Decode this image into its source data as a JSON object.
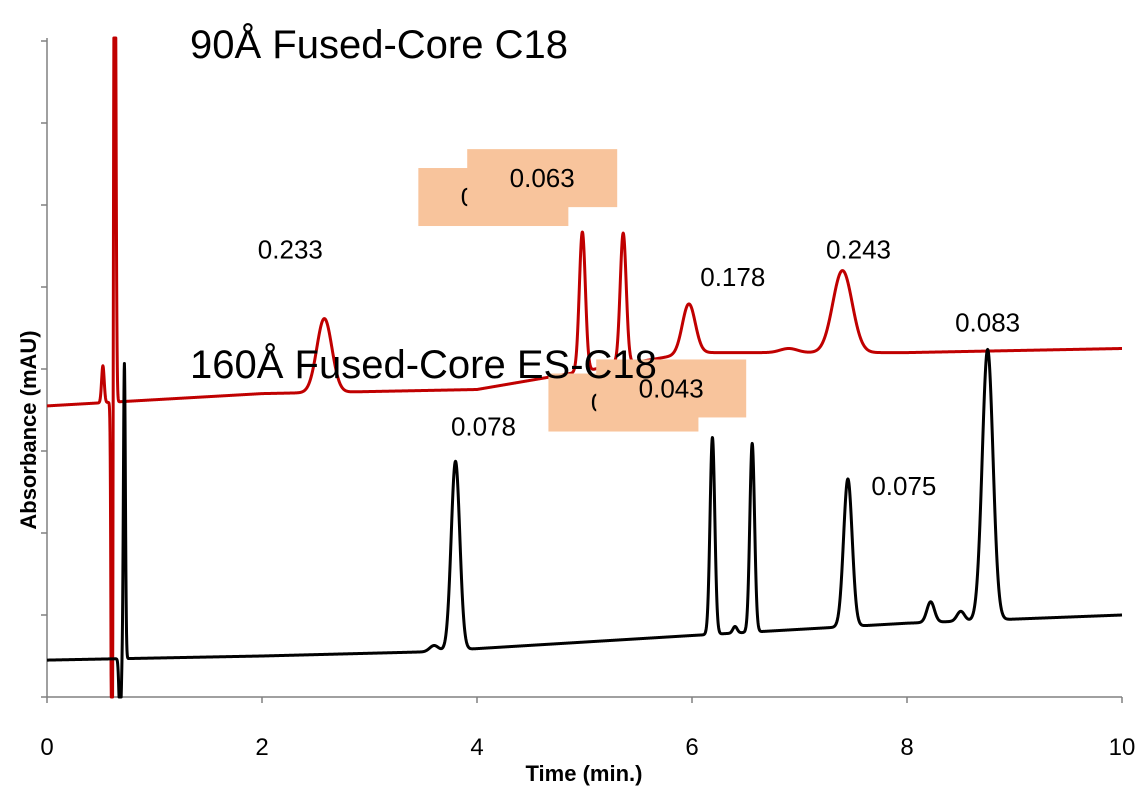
{
  "chart_data": {
    "type": "line",
    "xlabel": "Time (min.)",
    "ylabel": "Absorbance (mAU)",
    "xlim": [
      0,
      10
    ],
    "x_ticks": [
      "0",
      "2",
      "4",
      "6",
      "8",
      "10"
    ],
    "y_ticks_labeled": false,
    "grid": false,
    "colors": {
      "red_trace": "#c00000",
      "black_trace": "#000000",
      "highlight": "#f8c49c"
    },
    "series": [
      {
        "name": "90Å Fused-Core C18",
        "color": "#c00000",
        "baseline": [
          [
            0.0,
            3.55
          ],
          [
            2.0,
            3.7
          ],
          [
            4.0,
            3.75
          ],
          [
            6.0,
            4.2
          ],
          [
            8.0,
            4.2
          ],
          [
            10.0,
            4.25
          ]
        ],
        "peaks": [
          {
            "t": 0.52,
            "h": 0.45,
            "w": 0.012
          },
          {
            "t": 0.63,
            "h": 7.5,
            "w": 0.01
          },
          {
            "t": 0.605,
            "h": -6.3,
            "w": 0.008
          },
          {
            "t": 2.58,
            "h": 0.9,
            "w": 0.07
          },
          {
            "t": 4.98,
            "h": 1.7,
            "w": 0.028
          },
          {
            "t": 5.22,
            "h": 0.05,
            "w": 0.05
          },
          {
            "t": 5.36,
            "h": 1.6,
            "w": 0.028
          },
          {
            "t": 5.97,
            "h": 0.6,
            "w": 0.06
          },
          {
            "t": 6.9,
            "h": 0.05,
            "w": 0.08
          },
          {
            "t": 7.4,
            "h": 1.0,
            "w": 0.09
          }
        ],
        "peak_labels": [
          {
            "x": 2.58,
            "text": "0.233",
            "highlight": false
          },
          {
            "x": 4.98,
            "text": "0.058",
            "highlight": true
          },
          {
            "x": 5.36,
            "text": "0.063",
            "highlight": true
          },
          {
            "x": 5.97,
            "text": "0.178",
            "highlight": false
          },
          {
            "x": 7.4,
            "text": "0.243",
            "highlight": false
          }
        ]
      },
      {
        "name": "160Å Fused-Core ES-C18",
        "color": "#000000",
        "baseline": [
          [
            0.0,
            0.45
          ],
          [
            2.0,
            0.5
          ],
          [
            3.5,
            0.55
          ],
          [
            6.0,
            0.75
          ],
          [
            8.0,
            0.9
          ],
          [
            10.0,
            1.0
          ]
        ],
        "peaks": [
          {
            "t": 0.72,
            "h": 3.6,
            "w": 0.009
          },
          {
            "t": 0.68,
            "h": -0.8,
            "w": 0.01
          },
          {
            "t": 3.6,
            "h": 0.07,
            "w": 0.04
          },
          {
            "t": 3.8,
            "h": 2.3,
            "w": 0.04
          },
          {
            "t": 6.19,
            "h": 2.4,
            "w": 0.022
          },
          {
            "t": 6.4,
            "h": 0.08,
            "w": 0.02
          },
          {
            "t": 6.56,
            "h": 2.3,
            "w": 0.022
          },
          {
            "t": 7.45,
            "h": 1.8,
            "w": 0.04
          },
          {
            "t": 8.22,
            "h": 0.25,
            "w": 0.035
          },
          {
            "t": 8.5,
            "h": 0.12,
            "w": 0.035
          },
          {
            "t": 8.75,
            "h": 3.3,
            "w": 0.05
          }
        ],
        "peak_labels": [
          {
            "x": 3.8,
            "text": "0.078",
            "highlight": false
          },
          {
            "x": 6.19,
            "text": "0.041",
            "highlight": true
          },
          {
            "x": 6.56,
            "text": "0.043",
            "highlight": true
          },
          {
            "x": 7.45,
            "text": "0.075",
            "highlight": false
          },
          {
            "x": 8.75,
            "text": "0.083",
            "highlight": false
          }
        ]
      }
    ]
  }
}
